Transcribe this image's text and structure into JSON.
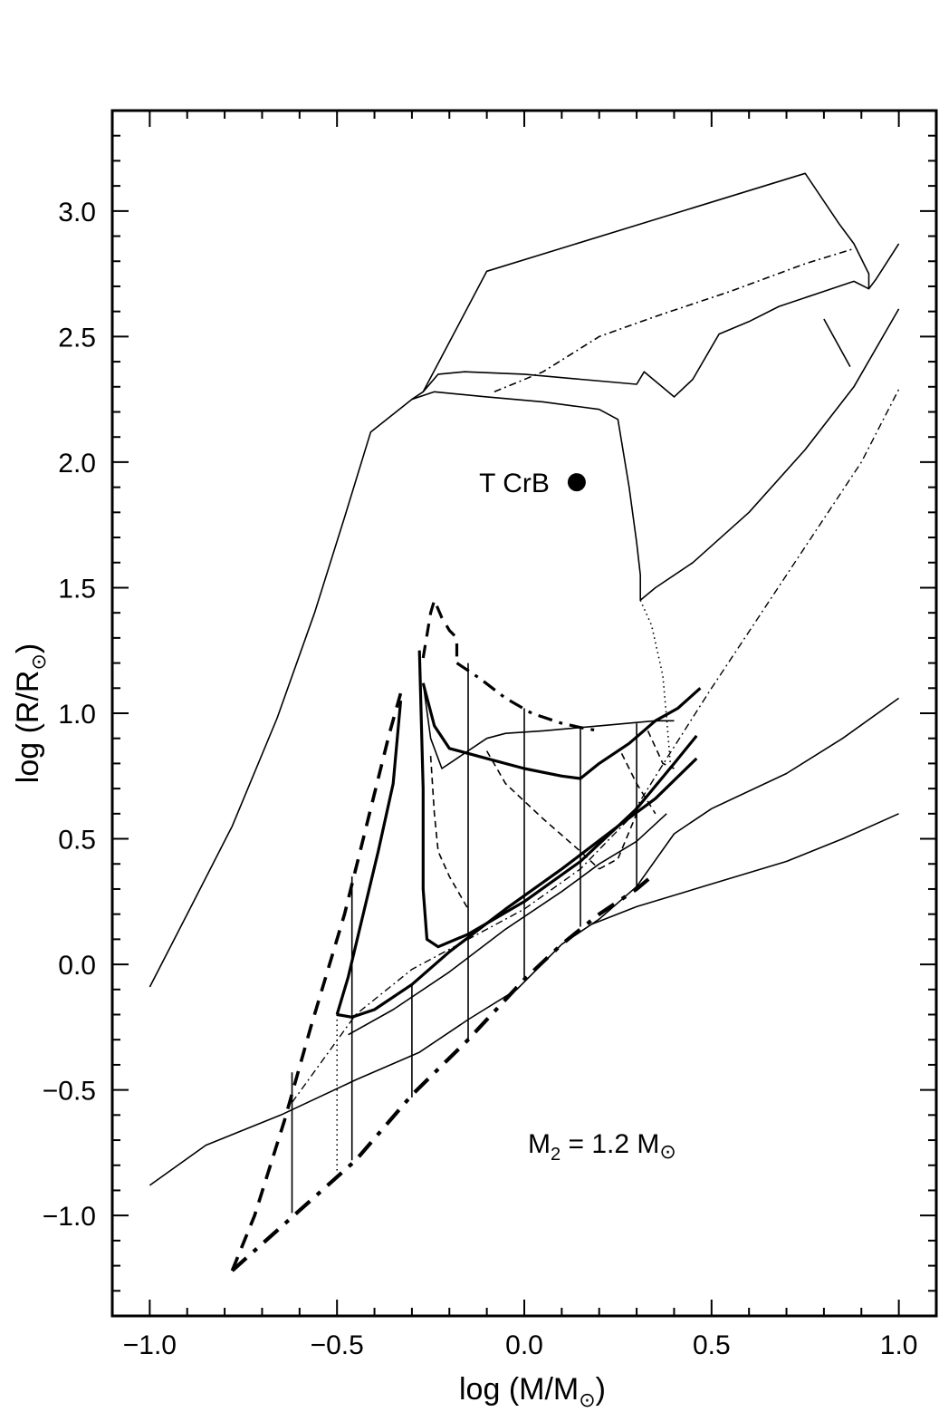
{
  "chart_data": {
    "type": "line",
    "xlabel": "log (M/M",
    "xlabel_sun": "⊙",
    "xlabel_close": ")",
    "ylabel": "log (R/R",
    "ylabel_sun": "⊙",
    "ylabel_close": ")",
    "xlim": [
      -1.1,
      1.1
    ],
    "ylim": [
      -1.4,
      3.4
    ],
    "x_ticks": [
      -1.0,
      -0.5,
      0.0,
      0.5,
      1.0
    ],
    "x_tick_labels": [
      "−1.0",
      "−0.5",
      "0.0",
      "0.5",
      "1.0"
    ],
    "y_ticks": [
      -1.0,
      -0.5,
      0.0,
      0.5,
      1.0,
      1.5,
      2.0,
      2.5,
      3.0
    ],
    "y_tick_labels": [
      "−1.0",
      "−0.5",
      "0.0",
      "0.5",
      "1.0",
      "1.5",
      "2.0",
      "2.5",
      "3.0"
    ],
    "grid": false,
    "annotations": {
      "star_label": "T CrB",
      "star_point": {
        "x": 0.14,
        "y": 1.92
      },
      "m2_prefix": "M",
      "m2_sub": "2",
      "m2_middle": " = 1.2 M",
      "m2_sun": "⊙"
    },
    "series": [
      {
        "style": "solid",
        "width": 1.6,
        "points": [
          [
            -1.0,
            -0.09
          ],
          [
            -0.9,
            0.2
          ],
          [
            -0.78,
            0.55
          ],
          [
            -0.66,
            0.98
          ],
          [
            -0.56,
            1.4
          ],
          [
            -0.48,
            1.78
          ],
          [
            -0.41,
            2.12
          ],
          [
            -0.3,
            2.25
          ],
          [
            -0.27,
            2.28
          ],
          [
            -0.1,
            2.76
          ],
          [
            0.75,
            3.15
          ],
          [
            0.84,
            2.95
          ],
          [
            0.88,
            2.87
          ],
          [
            0.92,
            2.75
          ],
          [
            0.92,
            2.69
          ],
          [
            0.94,
            2.73
          ],
          [
            1.0,
            2.87
          ]
        ]
      },
      {
        "style": "solid",
        "width": 1.6,
        "points": [
          [
            -0.27,
            2.28
          ],
          [
            -0.23,
            2.35
          ],
          [
            -0.16,
            2.36
          ],
          [
            0.0,
            2.35
          ],
          [
            0.15,
            2.33
          ],
          [
            0.3,
            2.31
          ],
          [
            0.32,
            2.36
          ],
          [
            0.36,
            2.31
          ],
          [
            0.4,
            2.26
          ],
          [
            0.45,
            2.33
          ],
          [
            0.52,
            2.51
          ],
          [
            0.6,
            2.56
          ],
          [
            0.68,
            2.62
          ],
          [
            0.8,
            2.68
          ],
          [
            0.88,
            2.72
          ],
          [
            0.92,
            2.69
          ]
        ]
      },
      {
        "style": "solid",
        "width": 1.6,
        "points": [
          [
            -0.3,
            2.25
          ],
          [
            -0.24,
            2.28
          ],
          [
            -0.1,
            2.26
          ],
          [
            0.05,
            2.24
          ],
          [
            0.2,
            2.21
          ],
          [
            0.25,
            2.17
          ],
          [
            0.28,
            1.9
          ],
          [
            0.3,
            1.68
          ],
          [
            0.31,
            1.55
          ],
          [
            0.31,
            1.45
          ],
          [
            0.35,
            1.5
          ],
          [
            0.45,
            1.6
          ],
          [
            0.6,
            1.8
          ],
          [
            0.75,
            2.05
          ],
          [
            0.88,
            2.3
          ],
          [
            1.0,
            2.61
          ]
        ]
      },
      {
        "style": "solid",
        "width": 1.6,
        "points": [
          [
            0.8,
            2.57
          ],
          [
            0.87,
            2.38
          ]
        ]
      },
      {
        "style": "dashdot",
        "width": 1.6,
        "points": [
          [
            -0.08,
            2.28
          ],
          [
            0.05,
            2.36
          ],
          [
            0.2,
            2.5
          ],
          [
            0.35,
            2.58
          ],
          [
            0.55,
            2.68
          ],
          [
            0.75,
            2.79
          ],
          [
            0.88,
            2.85
          ]
        ]
      },
      {
        "style": "dotted",
        "width": 1.6,
        "points": [
          [
            0.31,
            1.45
          ],
          [
            0.34,
            1.35
          ],
          [
            0.37,
            1.15
          ],
          [
            0.38,
            0.98
          ],
          [
            0.39,
            0.8
          ]
        ]
      },
      {
        "style": "solid",
        "width": 1.6,
        "points": [
          [
            -1.0,
            -0.88
          ],
          [
            -0.85,
            -0.72
          ],
          [
            -0.65,
            -0.6
          ],
          [
            -0.45,
            -0.46
          ],
          [
            -0.28,
            -0.35
          ],
          [
            -0.15,
            -0.22
          ],
          [
            -0.02,
            -0.1
          ],
          [
            0.1,
            0.08
          ],
          [
            0.2,
            0.18
          ],
          [
            0.3,
            0.31
          ],
          [
            0.4,
            0.52
          ],
          [
            0.5,
            0.62
          ],
          [
            0.7,
            0.76
          ],
          [
            0.85,
            0.9
          ],
          [
            1.0,
            1.06
          ]
        ]
      },
      {
        "style": "solid",
        "width": 1.6,
        "points": [
          [
            -0.47,
            -0.28
          ],
          [
            -0.35,
            -0.18
          ],
          [
            -0.2,
            -0.03
          ],
          [
            -0.05,
            0.14
          ],
          [
            0.1,
            0.29
          ],
          [
            0.2,
            0.4
          ],
          [
            0.3,
            0.49
          ],
          [
            0.38,
            0.6
          ]
        ]
      },
      {
        "style": "solid",
        "width": 1.6,
        "points": [
          [
            0.18,
            0.16
          ],
          [
            0.3,
            0.23
          ],
          [
            0.5,
            0.32
          ],
          [
            0.7,
            0.41
          ],
          [
            0.85,
            0.5
          ],
          [
            1.0,
            0.6
          ]
        ]
      },
      {
        "style": "dashdot",
        "width": 1.4,
        "points": [
          [
            -0.62,
            -0.55
          ],
          [
            -0.45,
            -0.2
          ],
          [
            -0.3,
            -0.02
          ],
          [
            -0.15,
            0.1
          ],
          [
            0.0,
            0.22
          ],
          [
            0.15,
            0.38
          ],
          [
            0.28,
            0.58
          ],
          [
            0.38,
            0.82
          ],
          [
            0.5,
            1.1
          ],
          [
            0.7,
            1.55
          ],
          [
            0.9,
            2.0
          ],
          [
            1.0,
            2.29
          ]
        ]
      },
      {
        "style": "dashdot",
        "width": 4.2,
        "points": [
          [
            -0.78,
            -1.22
          ],
          [
            -0.6,
            -0.98
          ],
          [
            -0.45,
            -0.78
          ],
          [
            -0.3,
            -0.52
          ],
          [
            -0.15,
            -0.3
          ],
          [
            0.0,
            -0.06
          ],
          [
            0.1,
            0.08
          ],
          [
            0.2,
            0.2
          ],
          [
            0.3,
            0.3
          ],
          [
            0.34,
            0.35
          ]
        ]
      },
      {
        "style": "dashed",
        "width": 3.6,
        "points": [
          [
            -0.78,
            -1.22
          ],
          [
            -0.72,
            -1.0
          ],
          [
            -0.64,
            -0.62
          ],
          [
            -0.57,
            -0.25
          ],
          [
            -0.48,
            0.2
          ],
          [
            -0.41,
            0.62
          ],
          [
            -0.36,
            0.92
          ],
          [
            -0.33,
            1.08
          ]
        ]
      },
      {
        "style": "solid",
        "width": 3.2,
        "points": [
          [
            -0.5,
            -0.2
          ],
          [
            -0.47,
            -0.05
          ],
          [
            -0.43,
            0.2
          ],
          [
            -0.39,
            0.45
          ],
          [
            -0.35,
            0.72
          ],
          [
            -0.33,
            1.05
          ]
        ]
      },
      {
        "style": "solid",
        "width": 3.2,
        "points": [
          [
            -0.5,
            -0.2
          ],
          [
            -0.46,
            -0.21
          ],
          [
            -0.4,
            -0.18
          ],
          [
            -0.3,
            -0.08
          ],
          [
            -0.2,
            0.05
          ],
          [
            -0.05,
            0.22
          ],
          [
            0.1,
            0.38
          ],
          [
            0.25,
            0.55
          ],
          [
            0.35,
            0.66
          ],
          [
            0.46,
            0.82
          ]
        ]
      },
      {
        "style": "solid",
        "width": 3.2,
        "points": [
          [
            -0.28,
            1.25
          ],
          [
            -0.27,
            0.7
          ],
          [
            -0.27,
            0.3
          ],
          [
            -0.26,
            0.1
          ],
          [
            -0.23,
            0.07
          ],
          [
            -0.15,
            0.12
          ],
          [
            0.0,
            0.25
          ],
          [
            0.15,
            0.41
          ],
          [
            0.3,
            0.62
          ],
          [
            0.4,
            0.8
          ],
          [
            0.46,
            0.91
          ]
        ]
      },
      {
        "style": "dashed",
        "width": 3.2,
        "points": [
          [
            -0.27,
            1.22
          ],
          [
            -0.25,
            1.4
          ],
          [
            -0.24,
            1.45
          ],
          [
            -0.22,
            1.38
          ],
          [
            -0.2,
            1.33
          ],
          [
            -0.18,
            1.3
          ],
          [
            -0.18,
            1.2
          ]
        ]
      },
      {
        "style": "dashdot",
        "width": 3.2,
        "points": [
          [
            -0.18,
            1.2
          ],
          [
            -0.12,
            1.14
          ],
          [
            -0.05,
            1.06
          ],
          [
            0.02,
            1.0
          ],
          [
            0.1,
            0.96
          ],
          [
            0.16,
            0.94
          ],
          [
            0.2,
            0.93
          ]
        ]
      },
      {
        "style": "solid",
        "width": 3.2,
        "points": [
          [
            -0.27,
            1.12
          ],
          [
            -0.24,
            0.95
          ],
          [
            -0.2,
            0.86
          ],
          [
            -0.1,
            0.82
          ],
          [
            0.0,
            0.78
          ],
          [
            0.1,
            0.75
          ],
          [
            0.15,
            0.74
          ],
          [
            0.2,
            0.8
          ],
          [
            0.28,
            0.88
          ],
          [
            0.35,
            0.97
          ],
          [
            0.41,
            1.02
          ],
          [
            0.47,
            1.1
          ]
        ]
      },
      {
        "style": "solid",
        "width": 1.6,
        "points": [
          [
            -0.27,
            1.12
          ],
          [
            -0.25,
            0.9
          ],
          [
            -0.22,
            0.78
          ],
          [
            -0.18,
            0.82
          ],
          [
            -0.1,
            0.9
          ],
          [
            -0.05,
            0.92
          ],
          [
            0.05,
            0.93
          ],
          [
            0.2,
            0.95
          ],
          [
            0.35,
            0.97
          ],
          [
            0.4,
            0.97
          ]
        ]
      },
      {
        "style": "dashed",
        "width": 1.6,
        "points": [
          [
            -0.25,
            0.83
          ],
          [
            -0.24,
            0.6
          ],
          [
            -0.23,
            0.45
          ],
          [
            -0.2,
            0.35
          ],
          [
            -0.15,
            0.22
          ]
        ]
      },
      {
        "style": "dashed",
        "width": 1.6,
        "points": [
          [
            -0.1,
            0.85
          ],
          [
            -0.05,
            0.72
          ],
          [
            0.05,
            0.58
          ],
          [
            0.15,
            0.45
          ],
          [
            0.2,
            0.38
          ]
        ]
      },
      {
        "style": "dashed",
        "width": 1.6,
        "points": [
          [
            0.2,
            0.38
          ],
          [
            0.25,
            0.42
          ],
          [
            0.3,
            0.6
          ]
        ]
      },
      {
        "style": "dashed",
        "width": 1.6,
        "points": [
          [
            0.26,
            0.84
          ],
          [
            0.3,
            0.72
          ],
          [
            0.35,
            0.6
          ]
        ]
      },
      {
        "style": "dashed",
        "width": 1.6,
        "points": [
          [
            0.33,
            0.93
          ],
          [
            0.37,
            0.8
          ],
          [
            0.4,
            0.78
          ]
        ]
      },
      {
        "style": "solid",
        "width": 1.6,
        "points": [
          [
            -0.62,
            -0.43
          ],
          [
            -0.62,
            -0.99
          ]
        ]
      },
      {
        "style": "dotted",
        "width": 1.6,
        "points": [
          [
            -0.5,
            -0.2
          ],
          [
            -0.5,
            -0.83
          ]
        ]
      },
      {
        "style": "solid",
        "width": 1.6,
        "points": [
          [
            -0.46,
            0.35
          ],
          [
            -0.46,
            -0.21
          ]
        ]
      },
      {
        "style": "solid",
        "width": 1.6,
        "points": [
          [
            -0.46,
            -0.21
          ],
          [
            -0.46,
            -0.78
          ]
        ]
      },
      {
        "style": "solid",
        "width": 1.6,
        "points": [
          [
            -0.3,
            -0.08
          ],
          [
            -0.3,
            -0.53
          ]
        ]
      },
      {
        "style": "solid",
        "width": 1.6,
        "points": [
          [
            -0.15,
            1.2
          ],
          [
            -0.15,
            -0.3
          ]
        ]
      },
      {
        "style": "solid",
        "width": 1.6,
        "points": [
          [
            0.0,
            1.02
          ],
          [
            0.0,
            -0.06
          ]
        ]
      },
      {
        "style": "solid",
        "width": 1.6,
        "points": [
          [
            0.15,
            0.94
          ],
          [
            0.15,
            0.15
          ]
        ]
      },
      {
        "style": "solid",
        "width": 1.6,
        "points": [
          [
            0.3,
            0.96
          ],
          [
            0.3,
            0.3
          ]
        ]
      }
    ]
  }
}
